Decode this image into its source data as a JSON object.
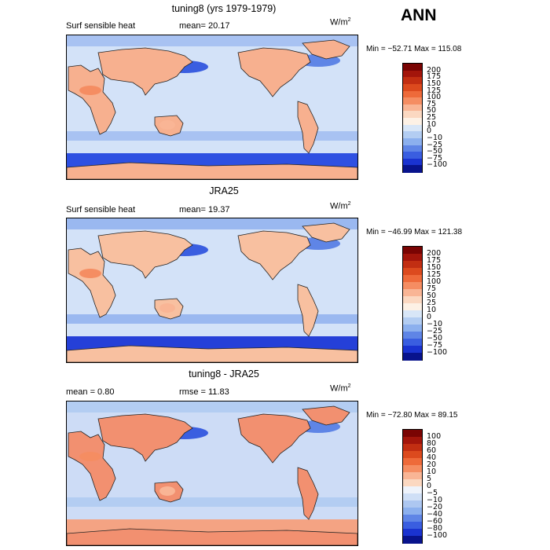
{
  "figure_label": "ANN",
  "units": "W/m",
  "units_exp": "2",
  "panels": [
    {
      "title": "tuning8 (yrs 1979-1979)",
      "left_label": "Surf sensible heat",
      "mid_label": "mean=  20.17",
      "minmax": "Min = −52.71  Max = 115.08",
      "colorbar": {
        "levels": [
          "200",
          "175",
          "150",
          "125",
          "100",
          "75",
          "50",
          "25",
          "10",
          "0",
          "−10",
          "−25",
          "−50",
          "−75",
          "−100"
        ],
        "colors": [
          "#7a0403",
          "#a3150b",
          "#c22e12",
          "#dc4a1e",
          "#ee6a3a",
          "#f58d62",
          "#f9b595",
          "#fbd8c1",
          "#fdf1e5",
          "#d8e6f7",
          "#b3cdf2",
          "#8cb0ee",
          "#5f85e6",
          "#3a5ee0",
          "#1a33d0",
          "#08138c"
        ]
      },
      "map_values": {
        "land_warm": "#f7b08f",
        "ocean": "#d3e2f8",
        "southern_ocean": "#2e50e2",
        "storm_track": "#a8c2f2"
      }
    },
    {
      "title": "JRA25",
      "left_label": "Surf sensible heat",
      "mid_label": "mean=  19.37",
      "minmax": "Min = −46.99  Max = 121.38",
      "colorbar": {
        "levels": [
          "200",
          "175",
          "150",
          "125",
          "100",
          "75",
          "50",
          "25",
          "10",
          "0",
          "−10",
          "−25",
          "−50",
          "−75",
          "−100"
        ],
        "colors": [
          "#7a0403",
          "#a3150b",
          "#c22e12",
          "#dc4a1e",
          "#ee6a3a",
          "#f58d62",
          "#f9b595",
          "#fbd8c1",
          "#fdf1e5",
          "#d8e6f7",
          "#b3cdf2",
          "#8cb0ee",
          "#5f85e6",
          "#3a5ee0",
          "#1a33d0",
          "#08138c"
        ]
      },
      "map_values": {
        "land_warm": "#f8c0a0",
        "ocean": "#d3e2f8",
        "southern_ocean": "#2540d8",
        "storm_track": "#9ab8f0"
      }
    },
    {
      "title": "tuning8 - JRA25",
      "left_label": "mean =    0.80",
      "mid_label": "rmse =   11.83",
      "minmax": "Min = −72.80  Max =  89.15",
      "colorbar": {
        "levels": [
          "100",
          "80",
          "60",
          "40",
          "20",
          "10",
          "5",
          "0",
          "−5",
          "−10",
          "−20",
          "−40",
          "−60",
          "−80",
          "−100"
        ],
        "colors": [
          "#7a0403",
          "#a3150b",
          "#c22e12",
          "#dc4a1e",
          "#ee6a3a",
          "#f58d62",
          "#f9b595",
          "#fbd8c1",
          "#eef3fb",
          "#cfdff6",
          "#adc7f1",
          "#8cb0ee",
          "#5f85e6",
          "#3a5ee0",
          "#1a33d0",
          "#08138c"
        ]
      },
      "map_values": {
        "land_warm": "#f29070",
        "ocean": "#cddcf6",
        "southern_ocean": "#f4a383",
        "storm_track": "#b3cdf2"
      }
    }
  ]
}
